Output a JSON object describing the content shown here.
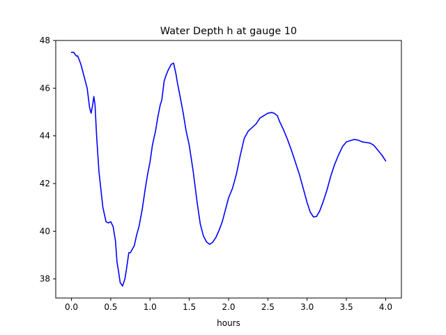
{
  "chart_data": {
    "type": "line",
    "title": "Water Depth h at gauge 10",
    "xlabel": "hours",
    "ylabel": "",
    "xlim": [
      -0.2,
      4.2
    ],
    "ylim": [
      37.2,
      48.0
    ],
    "xticks": [
      0.0,
      0.5,
      1.0,
      1.5,
      2.0,
      2.5,
      3.0,
      3.5,
      4.0
    ],
    "xtick_labels": [
      "0.0",
      "0.5",
      "1.0",
      "1.5",
      "2.0",
      "2.5",
      "3.0",
      "3.5",
      "4.0"
    ],
    "yticks": [
      38,
      40,
      42,
      44,
      46,
      48
    ],
    "ytick_labels": [
      "38",
      "40",
      "42",
      "44",
      "46",
      "48"
    ],
    "grid": false,
    "series": [
      {
        "color": "#0000ff",
        "x": [
          0.0,
          0.03,
          0.06,
          0.08,
          0.12,
          0.16,
          0.2,
          0.23,
          0.25,
          0.27,
          0.285,
          0.3,
          0.32,
          0.35,
          0.4,
          0.44,
          0.47,
          0.5,
          0.53,
          0.56,
          0.58,
          0.6,
          0.62,
          0.65,
          0.68,
          0.7,
          0.73,
          0.75,
          0.8,
          0.83,
          0.86,
          0.9,
          0.94,
          0.97,
          1.0,
          1.03,
          1.07,
          1.1,
          1.13,
          1.15,
          1.18,
          1.2,
          1.23,
          1.27,
          1.3,
          1.33,
          1.35,
          1.38,
          1.42,
          1.46,
          1.5,
          1.55,
          1.6,
          1.64,
          1.68,
          1.72,
          1.76,
          1.8,
          1.84,
          1.88,
          1.92,
          1.96,
          2.0,
          2.05,
          2.1,
          2.15,
          2.2,
          2.25,
          2.3,
          2.35,
          2.4,
          2.45,
          2.5,
          2.55,
          2.58,
          2.62,
          2.65,
          2.7,
          2.75,
          2.8,
          2.85,
          2.9,
          2.95,
          3.0,
          3.04,
          3.08,
          3.12,
          3.16,
          3.2,
          3.25,
          3.3,
          3.35,
          3.4,
          3.45,
          3.5,
          3.55,
          3.6,
          3.65,
          3.7,
          3.75,
          3.8,
          3.85,
          3.9,
          3.95,
          4.0
        ],
        "y": [
          47.5,
          47.5,
          47.35,
          47.35,
          47.0,
          46.5,
          46.0,
          45.2,
          44.95,
          45.3,
          45.65,
          45.3,
          44.0,
          42.5,
          41.0,
          40.4,
          40.35,
          40.4,
          40.2,
          39.6,
          38.7,
          38.3,
          37.85,
          37.7,
          38.0,
          38.4,
          39.1,
          39.1,
          39.4,
          39.85,
          40.2,
          40.9,
          41.8,
          42.4,
          42.9,
          43.6,
          44.2,
          44.8,
          45.3,
          45.5,
          46.3,
          46.5,
          46.75,
          47.0,
          47.05,
          46.6,
          46.2,
          45.7,
          45.0,
          44.2,
          43.6,
          42.5,
          41.2,
          40.3,
          39.8,
          39.55,
          39.45,
          39.55,
          39.75,
          40.05,
          40.4,
          40.9,
          41.4,
          41.8,
          42.4,
          43.2,
          43.9,
          44.2,
          44.35,
          44.5,
          44.75,
          44.85,
          44.95,
          44.98,
          44.95,
          44.85,
          44.6,
          44.25,
          43.85,
          43.4,
          42.9,
          42.4,
          41.8,
          41.2,
          40.8,
          40.6,
          40.62,
          40.85,
          41.2,
          41.7,
          42.3,
          42.8,
          43.2,
          43.55,
          43.75,
          43.8,
          43.85,
          43.82,
          43.75,
          43.72,
          43.7,
          43.6,
          43.4,
          43.2,
          42.95
        ]
      }
    ]
  }
}
